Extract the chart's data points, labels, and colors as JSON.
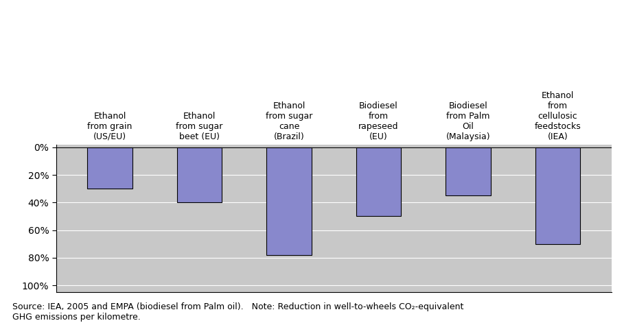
{
  "categories": [
    "Ethanol\nfrom grain\n(US/EU)",
    "Ethanol\nfrom sugar\nbeet (EU)",
    "Ethanol\nfrom sugar\ncane\n(Brazil)",
    "Biodiesel\nfrom\nrapeseed\n(EU)",
    "Biodiesel\nfrom Palm\nOil\n(Malaysia)",
    "Ethanol\nfrom\ncellulosic\nfeedstocks\n(IEA)"
  ],
  "values": [
    -30,
    -40,
    -78,
    -50,
    -35,
    -70
  ],
  "bar_color": "#8888cc",
  "bar_edgecolor": "#000000",
  "plot_bg_color": "#c8c8c8",
  "yticks": [
    0,
    -20,
    -40,
    -60,
    -80,
    -100
  ],
  "ytick_labels": [
    "0%",
    "20%",
    "40%",
    "60%",
    "80%",
    "100%"
  ],
  "ylim": [
    -105,
    2
  ],
  "figsize": [
    9.09,
    4.9
  ],
  "dpi": 100,
  "caption": "Source: IEA, 2005 and EMPA (biodiesel from Palm oil).   Note: Reduction in well-to-wheels CO₂-equivalent\nGHG emissions per kilometre."
}
